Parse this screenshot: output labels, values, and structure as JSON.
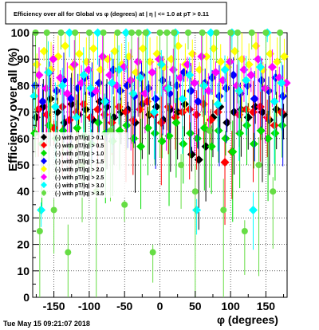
{
  "chart_data": {
    "type": "scatter",
    "title": "Efficiency over all for Global vs φ (degrees) at | η | <= 1.0 at pT > 0.11",
    "xlabel": "φ (degrees)",
    "ylabel": "Efficiency over all (%)",
    "xlim": [
      -180,
      180
    ],
    "ylim": [
      0,
      100
    ],
    "x_ticks": [
      -150,
      -100,
      -50,
      0,
      50,
      100,
      150
    ],
    "y_ticks": [
      0,
      10,
      20,
      30,
      40,
      50,
      60,
      70,
      80,
      90,
      100
    ],
    "x_tick_labels": [
      "-150",
      "-100",
      "-50",
      "0",
      "50",
      "100",
      "150"
    ],
    "y_tick_labels": [
      "0",
      "10",
      "20",
      "30",
      "40",
      "50",
      "60",
      "70",
      "80",
      "90",
      "100"
    ],
    "grid": true,
    "legend_placement": "middle-left",
    "series": [
      {
        "name": "(-) with pT/|q| > 0.1",
        "color": "#000000",
        "marker": "diamond",
        "points": [
          [
            -175,
            68
          ],
          [
            -165,
            72
          ],
          [
            -155,
            75
          ],
          [
            -145,
            70
          ],
          [
            -135,
            66
          ],
          [
            -125,
            73
          ],
          [
            -115,
            69
          ],
          [
            -105,
            71
          ],
          [
            -95,
            67
          ],
          [
            -85,
            74
          ],
          [
            -75,
            72
          ],
          [
            -65,
            68
          ],
          [
            -55,
            70
          ],
          [
            -45,
            71
          ],
          [
            -35,
            66
          ],
          [
            -25,
            73
          ],
          [
            -15,
            69
          ],
          [
            -5,
            72
          ],
          [
            5,
            67
          ],
          [
            15,
            71
          ],
          [
            25,
            70
          ],
          [
            35,
            73
          ],
          [
            45,
            54
          ],
          [
            55,
            52
          ],
          [
            65,
            57
          ],
          [
            75,
            68
          ],
          [
            85,
            72
          ],
          [
            95,
            66
          ],
          [
            105,
            70
          ],
          [
            115,
            71
          ],
          [
            125,
            68
          ],
          [
            135,
            72
          ],
          [
            145,
            70
          ],
          [
            155,
            67
          ],
          [
            165,
            71
          ],
          [
            175,
            69
          ]
        ]
      },
      {
        "name": "(-) with pT/|q| > 0.5",
        "color": "#ff0000",
        "marker": "diamond",
        "points": [
          [
            -172,
            71
          ],
          [
            -160,
            69
          ],
          [
            -150,
            64
          ],
          [
            -138,
            72
          ],
          [
            -128,
            67
          ],
          [
            -118,
            70
          ],
          [
            -108,
            73
          ],
          [
            -98,
            68
          ],
          [
            -88,
            71
          ],
          [
            -78,
            69
          ],
          [
            -68,
            66
          ],
          [
            -58,
            72
          ],
          [
            -48,
            70
          ],
          [
            -38,
            67
          ],
          [
            -28,
            71
          ],
          [
            -18,
            74
          ],
          [
            -8,
            69
          ],
          [
            2,
            66
          ],
          [
            12,
            72
          ],
          [
            22,
            68
          ],
          [
            32,
            70
          ],
          [
            42,
            71
          ],
          [
            52,
            69
          ],
          [
            62,
            73
          ],
          [
            72,
            67
          ],
          [
            82,
            70
          ],
          [
            92,
            51
          ],
          [
            102,
            55
          ],
          [
            112,
            69
          ],
          [
            122,
            71
          ],
          [
            132,
            70
          ],
          [
            142,
            72
          ],
          [
            152,
            68
          ],
          [
            162,
            65
          ],
          [
            172,
            70
          ]
        ]
      },
      {
        "name": "(-) with pT/|q| > 1.0",
        "color": "#00dd00",
        "marker": "diamond",
        "points": [
          [
            -177,
            62
          ],
          [
            -167,
            58
          ],
          [
            -157,
            65
          ],
          [
            -147,
            60
          ],
          [
            -137,
            63
          ],
          [
            -127,
            57
          ],
          [
            -117,
            64
          ],
          [
            -107,
            61
          ],
          [
            -97,
            58
          ],
          [
            -87,
            66
          ],
          [
            -77,
            62
          ],
          [
            -67,
            59
          ],
          [
            -57,
            63
          ],
          [
            -47,
            65
          ],
          [
            -37,
            60
          ],
          [
            -27,
            57
          ],
          [
            -17,
            64
          ],
          [
            -7,
            62
          ],
          [
            3,
            59
          ],
          [
            13,
            61
          ],
          [
            23,
            66
          ],
          [
            33,
            58
          ],
          [
            43,
            62
          ],
          [
            53,
            60
          ],
          [
            63,
            64
          ],
          [
            73,
            57
          ],
          [
            83,
            63
          ],
          [
            93,
            60
          ],
          [
            103,
            55
          ],
          [
            113,
            62
          ],
          [
            123,
            65
          ],
          [
            133,
            58
          ],
          [
            143,
            63
          ],
          [
            153,
            60
          ],
          [
            163,
            62
          ],
          [
            173,
            65
          ]
        ]
      },
      {
        "name": "(-) with pT/|q| > 1.5",
        "color": "#0000ff",
        "marker": "diamond",
        "points": [
          [
            -176,
            80
          ],
          [
            -166,
            74
          ],
          [
            -156,
            85
          ],
          [
            -146,
            78
          ],
          [
            -136,
            82
          ],
          [
            -126,
            75
          ],
          [
            -116,
            79
          ],
          [
            -106,
            83
          ],
          [
            -96,
            77
          ],
          [
            -86,
            81
          ],
          [
            -76,
            74
          ],
          [
            -66,
            86
          ],
          [
            -56,
            78
          ],
          [
            -46,
            80
          ],
          [
            -36,
            76
          ],
          [
            -26,
            84
          ],
          [
            -16,
            79
          ],
          [
            -6,
            75
          ],
          [
            4,
            82
          ],
          [
            14,
            77
          ],
          [
            24,
            80
          ],
          [
            34,
            85
          ],
          [
            44,
            78
          ],
          [
            54,
            74
          ],
          [
            64,
            81
          ],
          [
            74,
            83
          ],
          [
            84,
            76
          ],
          [
            94,
            79
          ],
          [
            104,
            84
          ],
          [
            114,
            77
          ],
          [
            124,
            80
          ],
          [
            134,
            75
          ],
          [
            144,
            82
          ],
          [
            154,
            78
          ],
          [
            164,
            83
          ],
          [
            174,
            76
          ]
        ]
      },
      {
        "name": "(-) with pT/|q| > 2.0",
        "color": "#ffff00",
        "marker": "diamond",
        "points": [
          [
            -174,
            88
          ],
          [
            -164,
            93
          ],
          [
            -154,
            86
          ],
          [
            -144,
            91
          ],
          [
            -134,
            95
          ],
          [
            -124,
            87
          ],
          [
            -114,
            92
          ],
          [
            -104,
            89
          ],
          [
            -94,
            94
          ],
          [
            -84,
            86
          ],
          [
            -74,
            90
          ],
          [
            -64,
            93
          ],
          [
            -54,
            88
          ],
          [
            -44,
            91
          ],
          [
            -34,
            85
          ],
          [
            -24,
            94
          ],
          [
            -14,
            89
          ],
          [
            -4,
            92
          ],
          [
            6,
            87
          ],
          [
            16,
            90
          ],
          [
            26,
            95
          ],
          [
            36,
            88
          ],
          [
            46,
            92
          ],
          [
            56,
            86
          ],
          [
            66,
            91
          ],
          [
            76,
            94
          ],
          [
            86,
            89
          ],
          [
            96,
            87
          ],
          [
            106,
            93
          ],
          [
            116,
            90
          ],
          [
            126,
            88
          ],
          [
            136,
            95
          ],
          [
            146,
            86
          ],
          [
            156,
            92
          ],
          [
            166,
            89
          ],
          [
            176,
            91
          ]
        ]
      },
      {
        "name": "(-) with pT/|q| > 2.5",
        "color": "#ff00ff",
        "marker": "diamond",
        "points": [
          [
            -171,
            84
          ],
          [
            -161,
            79
          ],
          [
            -151,
            90
          ],
          [
            -141,
            83
          ],
          [
            -131,
            77
          ],
          [
            -121,
            88
          ],
          [
            -111,
            81
          ],
          [
            -101,
            86
          ],
          [
            -91,
            78
          ],
          [
            -81,
            91
          ],
          [
            -71,
            84
          ],
          [
            -61,
            80
          ],
          [
            -51,
            87
          ],
          [
            -41,
            82
          ],
          [
            -31,
            89
          ],
          [
            -21,
            77
          ],
          [
            -11,
            85
          ],
          [
            -1,
            90
          ],
          [
            9,
            79
          ],
          [
            19,
            86
          ],
          [
            29,
            83
          ],
          [
            39,
            88
          ],
          [
            49,
            81
          ],
          [
            59,
            91
          ],
          [
            69,
            78
          ],
          [
            79,
            85
          ],
          [
            89,
            82
          ],
          [
            99,
            89
          ],
          [
            109,
            80
          ],
          [
            119,
            86
          ],
          [
            129,
            84
          ],
          [
            139,
            90
          ],
          [
            149,
            79
          ],
          [
            159,
            87
          ],
          [
            169,
            83
          ],
          [
            179,
            81
          ]
        ]
      },
      {
        "name": "(-) with pT/|q| > 3.0",
        "color": "#00ffff",
        "marker": "diamond",
        "points": [
          [
            -178,
            76
          ],
          [
            -168,
            33
          ],
          [
            -158,
            85
          ],
          [
            -148,
            72
          ],
          [
            -138,
            80
          ],
          [
            -128,
            100
          ],
          [
            -118,
            68
          ],
          [
            -108,
            84
          ],
          [
            -98,
            79
          ],
          [
            -88,
            100
          ],
          [
            -78,
            74
          ],
          [
            -68,
            81
          ],
          [
            -58,
            86
          ],
          [
            -48,
            100
          ],
          [
            -38,
            77
          ],
          [
            -28,
            83
          ],
          [
            -18,
            100
          ],
          [
            -8,
            70
          ],
          [
            2,
            88
          ],
          [
            12,
            79
          ],
          [
            22,
            100
          ],
          [
            32,
            75
          ],
          [
            42,
            84
          ],
          [
            52,
            33
          ],
          [
            62,
            80
          ],
          [
            72,
            100
          ],
          [
            82,
            73
          ],
          [
            92,
            86
          ],
          [
            102,
            100
          ],
          [
            112,
            78
          ],
          [
            122,
            82
          ],
          [
            132,
            33
          ],
          [
            142,
            87
          ],
          [
            152,
            100
          ],
          [
            162,
            74
          ],
          [
            172,
            81
          ]
        ]
      },
      {
        "name": "(-) with pT/|q| > 3.5",
        "color": "#66dd44",
        "marker": "circle",
        "points": [
          [
            -176,
            100
          ],
          [
            -170,
            25
          ],
          [
            -160,
            100
          ],
          [
            -150,
            33
          ],
          [
            -140,
            100
          ],
          [
            -130,
            17
          ],
          [
            -120,
            100
          ],
          [
            -110,
            50
          ],
          [
            -100,
            100
          ],
          [
            -90,
            40
          ],
          [
            -80,
            100
          ],
          [
            -70,
            63
          ],
          [
            -60,
            100
          ],
          [
            -50,
            35
          ],
          [
            -40,
            100
          ],
          [
            -30,
            100
          ],
          [
            -20,
            100
          ],
          [
            -10,
            17
          ],
          [
            0,
            100
          ],
          [
            10,
            100
          ],
          [
            20,
            100
          ],
          [
            30,
            50
          ],
          [
            40,
            100
          ],
          [
            50,
            40
          ],
          [
            60,
            100
          ],
          [
            70,
            63
          ],
          [
            80,
            100
          ],
          [
            90,
            33
          ],
          [
            100,
            100
          ],
          [
            110,
            100
          ],
          [
            120,
            25
          ],
          [
            130,
            100
          ],
          [
            140,
            50
          ],
          [
            150,
            100
          ],
          [
            160,
            40
          ],
          [
            170,
            100
          ]
        ]
      }
    ],
    "legend": [
      {
        "label": "(-) with pT/|q| > 0.1",
        "color": "#000000",
        "marker": "diamond"
      },
      {
        "label": "(-) with pT/|q| > 0.5",
        "color": "#ff0000",
        "marker": "diamond"
      },
      {
        "label": "(-) with pT/|q| > 1.0",
        "color": "#00dd00",
        "marker": "diamond"
      },
      {
        "label": "(-) with pT/|q| > 1.5",
        "color": "#0000ff",
        "marker": "diamond"
      },
      {
        "label": "(-) with pT/|q| > 2.0",
        "color": "#ffff00",
        "marker": "diamond"
      },
      {
        "label": "(-) with pT/|q| > 2.5",
        "color": "#ff00ff",
        "marker": "diamond"
      },
      {
        "label": "(-) with pT/|q| > 3.0",
        "color": "#00ffff",
        "marker": "diamond"
      },
      {
        "label": "(-) with pT/|q| > 3.5",
        "color": "#66dd44",
        "marker": "circle"
      }
    ]
  },
  "timestamp": "Tue May 15 09:21:07 2018"
}
